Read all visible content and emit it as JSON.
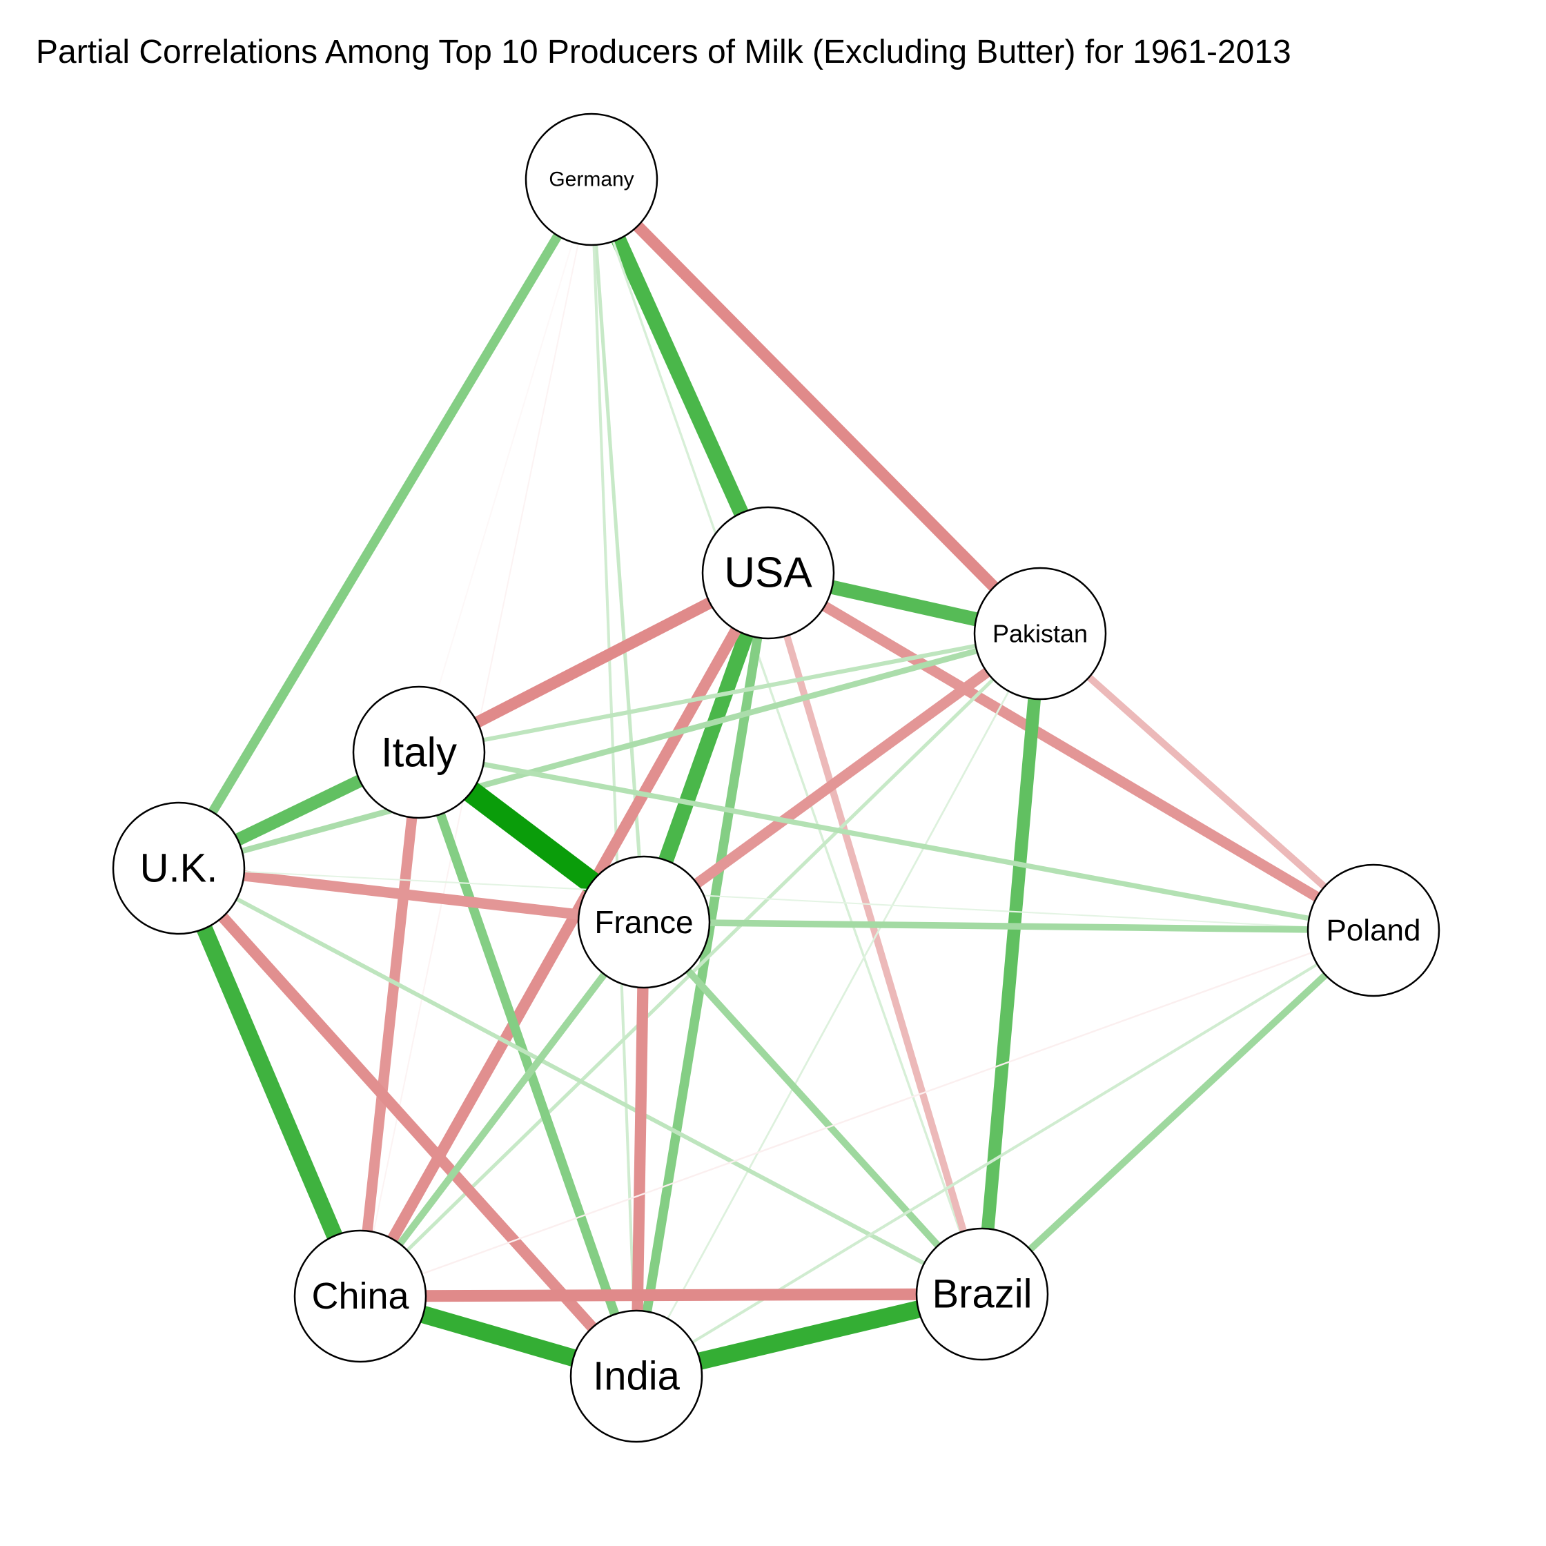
{
  "title": "Partial Correlations Among Top 10 Producers of Milk (Excluding Butter) for 1961-2013",
  "colors": {
    "positive": "#009900",
    "negative": "#dc7d7d",
    "node_fill": "#ffffff",
    "node_stroke": "#000000"
  },
  "nodes": [
    {
      "id": "germany",
      "label": "Germany"
    },
    {
      "id": "usa",
      "label": "USA"
    },
    {
      "id": "pakistan",
      "label": "Pakistan"
    },
    {
      "id": "italy",
      "label": "Italy"
    },
    {
      "id": "uk",
      "label": "U.K."
    },
    {
      "id": "france",
      "label": "France"
    },
    {
      "id": "poland",
      "label": "Poland"
    },
    {
      "id": "china",
      "label": "China"
    },
    {
      "id": "brazil",
      "label": "Brazil"
    },
    {
      "id": "india",
      "label": "India"
    }
  ],
  "edges": [
    {
      "from": "germany",
      "to": "uk",
      "weight": 0.4
    },
    {
      "from": "germany",
      "to": "usa",
      "weight": 0.65
    },
    {
      "from": "germany",
      "to": "pakistan",
      "weight": -0.5
    },
    {
      "from": "germany",
      "to": "france",
      "weight": 0.15
    },
    {
      "from": "germany",
      "to": "india",
      "weight": 0.12
    },
    {
      "from": "germany",
      "to": "brazil",
      "weight": 0.1
    },
    {
      "from": "germany",
      "to": "china",
      "weight": -0.05
    },
    {
      "from": "germany",
      "to": "italy",
      "weight": -0.03
    },
    {
      "from": "usa",
      "to": "pakistan",
      "weight": 0.6
    },
    {
      "from": "usa",
      "to": "italy",
      "weight": -0.5
    },
    {
      "from": "usa",
      "to": "france",
      "weight": 0.65
    },
    {
      "from": "usa",
      "to": "china",
      "weight": -0.48
    },
    {
      "from": "usa",
      "to": "india",
      "weight": 0.4
    },
    {
      "from": "usa",
      "to": "brazil",
      "weight": -0.3
    },
    {
      "from": "usa",
      "to": "poland",
      "weight": -0.45
    },
    {
      "from": "pakistan",
      "to": "italy",
      "weight": 0.18
    },
    {
      "from": "pakistan",
      "to": "uk",
      "weight": 0.25
    },
    {
      "from": "pakistan",
      "to": "france",
      "weight": -0.45
    },
    {
      "from": "pakistan",
      "to": "brazil",
      "weight": 0.55
    },
    {
      "from": "pakistan",
      "to": "poland",
      "weight": -0.3
    },
    {
      "from": "pakistan",
      "to": "china",
      "weight": 0.15
    },
    {
      "from": "pakistan",
      "to": "india",
      "weight": 0.08
    },
    {
      "from": "italy",
      "to": "uk",
      "weight": 0.55
    },
    {
      "from": "italy",
      "to": "france",
      "weight": 0.95
    },
    {
      "from": "italy",
      "to": "china",
      "weight": -0.45
    },
    {
      "from": "italy",
      "to": "india",
      "weight": 0.4
    },
    {
      "from": "italy",
      "to": "poland",
      "weight": 0.22
    },
    {
      "from": "uk",
      "to": "france",
      "weight": -0.45
    },
    {
      "from": "uk",
      "to": "china",
      "weight": 0.7
    },
    {
      "from": "uk",
      "to": "india",
      "weight": -0.48
    },
    {
      "from": "uk",
      "to": "brazil",
      "weight": 0.18
    },
    {
      "from": "uk",
      "to": "poland",
      "weight": 0.06
    },
    {
      "from": "france",
      "to": "poland",
      "weight": 0.28
    },
    {
      "from": "france",
      "to": "india",
      "weight": -0.48
    },
    {
      "from": "france",
      "to": "brazil",
      "weight": 0.3
    },
    {
      "from": "france",
      "to": "china",
      "weight": 0.3
    },
    {
      "from": "poland",
      "to": "brazil",
      "weight": 0.3
    },
    {
      "from": "poland",
      "to": "china",
      "weight": -0.07
    },
    {
      "from": "poland",
      "to": "india",
      "weight": 0.12
    },
    {
      "from": "china",
      "to": "india",
      "weight": 0.75
    },
    {
      "from": "china",
      "to": "brazil",
      "weight": -0.5
    },
    {
      "from": "india",
      "to": "brazil",
      "weight": 0.75
    }
  ]
}
